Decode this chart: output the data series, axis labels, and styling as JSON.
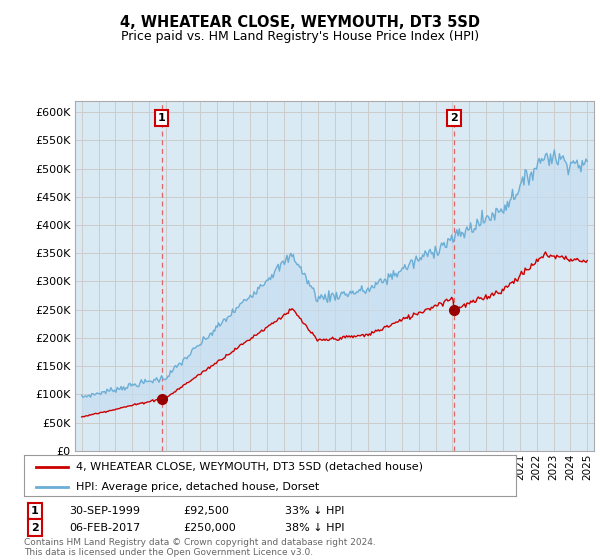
{
  "title": "4, WHEATEAR CLOSE, WEYMOUTH, DT3 5SD",
  "subtitle": "Price paid vs. HM Land Registry's House Price Index (HPI)",
  "ylabel_ticks": [
    "£0",
    "£50K",
    "£100K",
    "£150K",
    "£200K",
    "£250K",
    "£300K",
    "£350K",
    "£400K",
    "£450K",
    "£500K",
    "£550K",
    "£600K"
  ],
  "ylim": [
    0,
    620000
  ],
  "ytick_vals": [
    0,
    50000,
    100000,
    150000,
    200000,
    250000,
    300000,
    350000,
    400000,
    450000,
    500000,
    550000,
    600000
  ],
  "hpi_color": "#6baed6",
  "hpi_fill_color": "#daeaf5",
  "price_color": "#cc0000",
  "vline_color": "#e88080",
  "marker1_year": 1999.75,
  "marker1_price": 92500,
  "marker2_year": 2017.09,
  "marker2_price": 250000,
  "legend_label1": "4, WHEATEAR CLOSE, WEYMOUTH, DT3 5SD (detached house)",
  "legend_label2": "HPI: Average price, detached house, Dorset",
  "table_row1": [
    "1",
    "30-SEP-1999",
    "£92,500",
    "33% ↓ HPI"
  ],
  "table_row2": [
    "2",
    "06-FEB-2017",
    "£250,000",
    "38% ↓ HPI"
  ],
  "footer": "Contains HM Land Registry data © Crown copyright and database right 2024.\nThis data is licensed under the Open Government Licence v3.0.",
  "bg_color": "#ffffff",
  "grid_color": "#cccccc",
  "chart_bg": "#daeaf5"
}
